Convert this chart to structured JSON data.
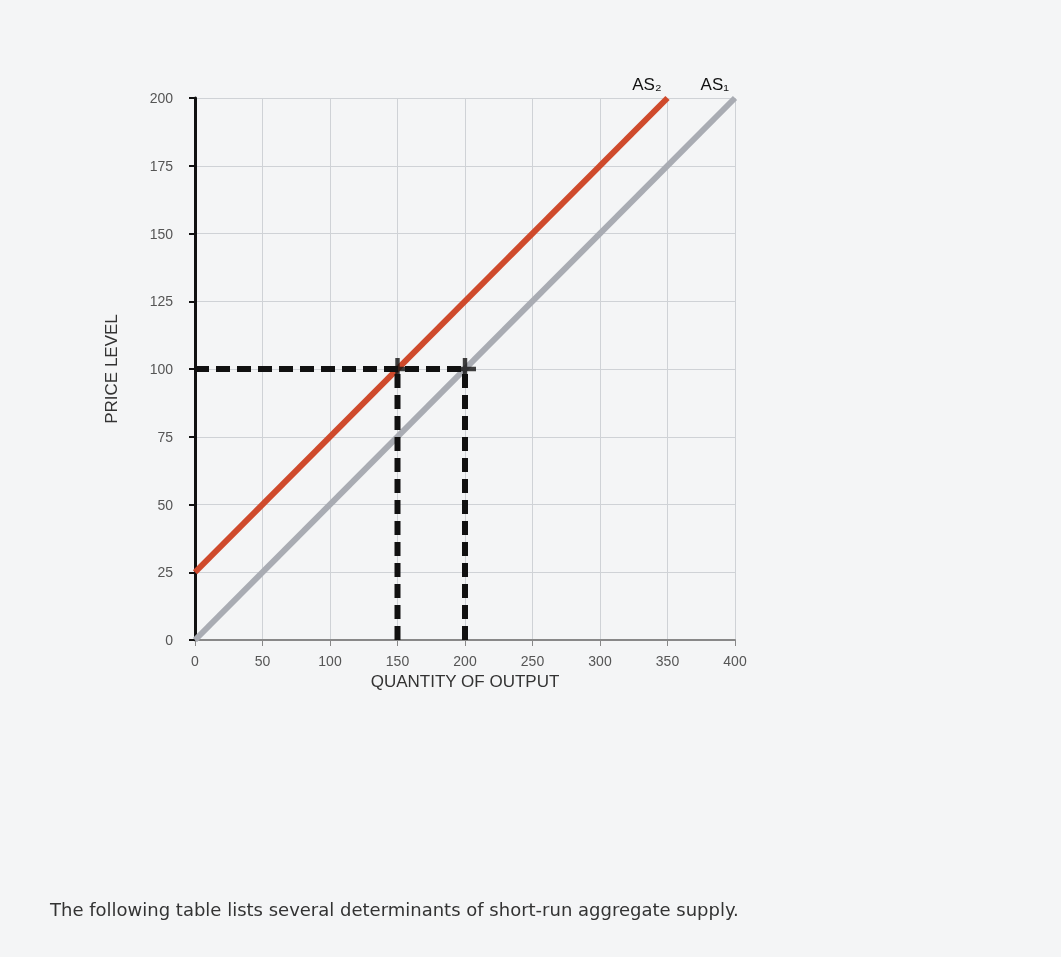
{
  "chart_data": {
    "type": "line",
    "xlabel": "QUANTITY OF OUTPUT",
    "ylabel": "PRICE LEVEL",
    "xlim": [
      0,
      400
    ],
    "xticks": [
      0,
      50,
      100,
      150,
      200,
      250,
      300,
      350,
      400
    ],
    "ylim": [
      0,
      200
    ],
    "yticks": [
      0,
      25,
      50,
      75,
      100,
      125,
      150,
      175,
      200
    ],
    "grid": true,
    "legend": false,
    "marker": "none",
    "annotations": [
      "The following table lists several determinants of short-run aggregate supply."
    ],
    "series": [
      {
        "name": "AS₁",
        "color": "#a9acb3",
        "x": [
          0,
          400
        ],
        "values": [
          0,
          200
        ]
      },
      {
        "name": "AS₂",
        "color": "#cf4a2c",
        "x": [
          0,
          350
        ],
        "values": [
          25,
          200
        ]
      },
      {
        "color": "#111111",
        "x": [
          0,
          200
        ],
        "values": [
          100,
          100
        ],
        "line_style": "dashed"
      },
      {
        "color": "#111111",
        "x": [
          150,
          150
        ],
        "values": [
          0,
          100
        ],
        "line_style": "dashed"
      },
      {
        "color": "#111111",
        "x": [
          200,
          200
        ],
        "values": [
          0,
          100
        ],
        "line_style": "dashed"
      },
      {
        "type": "scatter",
        "color": "#111111",
        "x": [
          150,
          200
        ],
        "values": [
          100,
          100
        ],
        "marker": "cross"
      }
    ]
  }
}
